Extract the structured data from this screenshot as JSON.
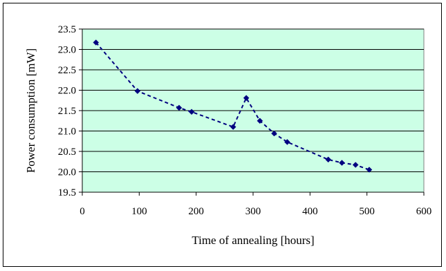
{
  "chart_data": {
    "type": "line",
    "xlabel": "Time of annealing [hours]",
    "ylabel": "Power consumption [mW]",
    "xlim": [
      0,
      600
    ],
    "ylim": [
      19.5,
      23.5
    ],
    "x_ticks": [
      "0",
      "100",
      "200",
      "300",
      "400",
      "500",
      "600"
    ],
    "y_ticks": [
      "19.5",
      "20.0",
      "20.5",
      "21.0",
      "21.5",
      "22.0",
      "22.5",
      "23.0",
      "23.5"
    ],
    "grid": "horizontal",
    "series": [
      {
        "line_style": "dashed",
        "marker": "diamond",
        "color": "#000080",
        "x": [
          24,
          97,
          170,
          192,
          265,
          288,
          312,
          337,
          360,
          432,
          456,
          480,
          504
        ],
        "y": [
          23.17,
          21.98,
          21.57,
          21.47,
          21.1,
          21.81,
          21.25,
          20.94,
          20.73,
          20.3,
          20.22,
          20.17,
          20.05
        ]
      }
    ],
    "plot_background": "#ccffe6"
  }
}
